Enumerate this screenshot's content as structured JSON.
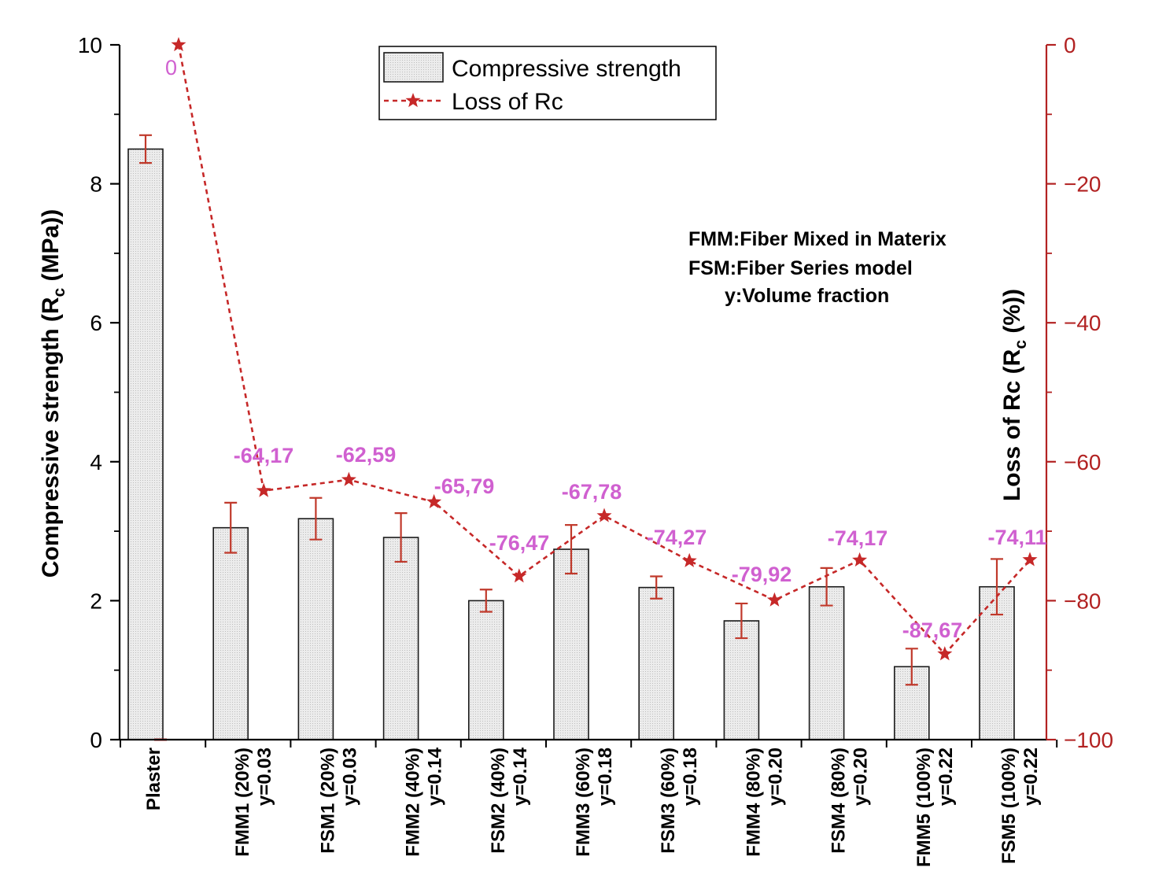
{
  "chart_data": {
    "type": "bar",
    "categories": [
      "Plaster",
      "FMM1 (20%)",
      "FSM1 (20%)",
      "FMM2 (40%)",
      "FSM2 (40%)",
      "FMM3 (60%)",
      "FSM3 (60%)",
      "FMM4 (80%)",
      "FSM4 (80%)",
      "FMM5 (100%)",
      "FSM5 (100%)"
    ],
    "volume_fraction_labels": [
      "",
      "y=0.03",
      "y=0.03",
      "y=0.14",
      "y=0.14",
      "y=0.18",
      "y=0.18",
      "y=0.20",
      "y=0.20",
      "y=0.22",
      "y=0.22"
    ],
    "series": [
      {
        "name": "Compressive strength",
        "type": "bar",
        "axis": "left",
        "values": [
          8.5,
          3.05,
          3.18,
          2.91,
          2.0,
          2.74,
          2.19,
          1.71,
          2.2,
          1.05,
          2.2
        ],
        "errors": [
          0.2,
          0.36,
          0.3,
          0.35,
          0.16,
          0.35,
          0.16,
          0.25,
          0.27,
          0.26,
          0.4
        ]
      },
      {
        "name": "Loss  of  Rc",
        "type": "line",
        "axis": "right",
        "values": [
          0,
          -64.17,
          -62.59,
          -65.79,
          -76.47,
          -67.78,
          -74.27,
          -79.92,
          -74.17,
          -87.67,
          -74.11
        ],
        "labels": [
          "0",
          "-64,17",
          "-62,59",
          "-65,79",
          "-76,47",
          "-67,78",
          "-74,27",
          "-79,92",
          "-74,17",
          "-87,67",
          "-74,11"
        ]
      }
    ],
    "ylabel": "Compressive strength (Rc (MPa))",
    "ylabel_parts": [
      "Compressive strength (R",
      "c",
      " (MPa))"
    ],
    "ylim": [
      0,
      10
    ],
    "yticks": [
      "0",
      "2",
      "4",
      "6",
      "8",
      "10"
    ],
    "y2label": "Loss  of  Rc (Rc (%))",
    "y2label_parts": [
      "Loss  of  Rc (R",
      "c",
      " (%))"
    ],
    "y2lim": [
      -100,
      0
    ],
    "y2ticks": [
      "−100",
      "−80",
      "−60",
      "−40",
      "−20",
      "0"
    ],
    "legend": {
      "position": "top-center",
      "entries": [
        "Compressive strength",
        "Loss  of  Rc"
      ]
    },
    "notes": [
      "FMM:Fiber Mixed in Materix",
      "FSM:Fiber Series model",
      "y:Volume fraction"
    ],
    "colors": {
      "bar_fill": "#e6e6e6",
      "bar_stroke": "#1a1a1a",
      "error_bar": "#c0392b",
      "line": "#c62828",
      "right_axis": "#b22222",
      "value_labels": "#d060d0"
    }
  }
}
